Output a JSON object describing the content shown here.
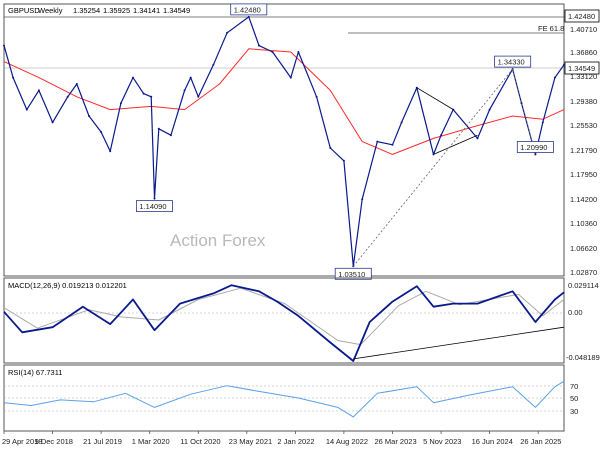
{
  "header": {
    "symbol": "GBPUSD",
    "timeframe": "Weekly",
    "ohlc": [
      "1.35254",
      "1.35925",
      "1.34141",
      "1.34549"
    ]
  },
  "watermark": "Action Forex",
  "price_axis": {
    "ticks": [
      "1.40710",
      "1.36860",
      "1.33120",
      "1.29380",
      "1.25530",
      "1.21790",
      "1.17950",
      "1.14200",
      "1.10360",
      "1.06620",
      "1.02870"
    ],
    "current_price": "1.34549",
    "level_high": "1.42480",
    "fib_label": "FE 61.8"
  },
  "annotations": [
    {
      "text": "1.42480",
      "date": "2021-06-01",
      "price": 1.4248
    },
    {
      "text": "1.14090",
      "date": "2020-03-23",
      "price": 1.1409
    },
    {
      "text": "1.03510",
      "date": "2022-09-26",
      "price": 1.0351
    },
    {
      "text": "1.34330",
      "date": "2024-09-30",
      "price": 1.3433
    },
    {
      "text": "1.20990",
      "date": "2025-01-13",
      "price": 1.2099
    }
  ],
  "macd": {
    "label": "MACD(12,26,9) 0.019213 0.012201",
    "ticks": [
      "0.029114",
      "0.00",
      "-0.048189"
    ]
  },
  "rsi": {
    "label": "RSI(14) 67.7311",
    "ticks": [
      "70",
      "50",
      "30"
    ]
  },
  "time_axis": [
    "29 Apr 2018",
    "9 Dec 2018",
    "21 Jul 2019",
    "1 Mar 2020",
    "11 Oct 2020",
    "23 May 2021",
    "2 Jan 2022",
    "14 Aug 2022",
    "26 Mar 2023",
    "5 Nov 2023",
    "16 Jun 2024",
    "26 Jan 2025"
  ],
  "chart_data": {
    "type": "line",
    "x_format": "date",
    "colors": {
      "price": "#0a1a8c",
      "ma": "#ff2a2a",
      "macd": "#0a1a8c",
      "signal": "#aaaaaa",
      "rsi": "#5aa0e8",
      "trendline": "#000000",
      "dotted": "#666666"
    },
    "price_ylim": [
      1.02,
      1.445
    ],
    "price": [
      [
        "2018-04-29",
        1.38
      ],
      [
        "2018-06-10",
        1.33
      ],
      [
        "2018-08-12",
        1.28
      ],
      [
        "2018-10-07",
        1.31
      ],
      [
        "2018-12-09",
        1.26
      ],
      [
        "2019-02-17",
        1.3
      ],
      [
        "2019-03-31",
        1.32
      ],
      [
        "2019-05-26",
        1.27
      ],
      [
        "2019-07-21",
        1.245
      ],
      [
        "2019-09-01",
        1.215
      ],
      [
        "2019-10-20",
        1.29
      ],
      [
        "2019-12-15",
        1.33
      ],
      [
        "2020-02-02",
        1.305
      ],
      [
        "2020-03-08",
        1.3
      ],
      [
        "2020-03-23",
        1.1409
      ],
      [
        "2020-04-12",
        1.25
      ],
      [
        "2020-06-07",
        1.24
      ],
      [
        "2020-08-09",
        1.31
      ],
      [
        "2020-09-06",
        1.33
      ],
      [
        "2020-10-11",
        1.3
      ],
      [
        "2020-12-20",
        1.35
      ],
      [
        "2021-02-21",
        1.4
      ],
      [
        "2021-06-01",
        1.4248
      ],
      [
        "2021-07-18",
        1.38
      ],
      [
        "2021-09-19",
        1.37
      ],
      [
        "2021-12-12",
        1.33
      ],
      [
        "2022-01-16",
        1.37
      ],
      [
        "2022-04-10",
        1.3
      ],
      [
        "2022-06-12",
        1.22
      ],
      [
        "2022-08-14",
        1.2
      ],
      [
        "2022-09-26",
        1.0351
      ],
      [
        "2022-11-06",
        1.14
      ],
      [
        "2023-01-15",
        1.23
      ],
      [
        "2023-03-26",
        1.225
      ],
      [
        "2023-05-07",
        1.26
      ],
      [
        "2023-07-16",
        1.3142
      ],
      [
        "2023-10-01",
        1.21
      ],
      [
        "2023-11-05",
        1.24
      ],
      [
        "2023-12-31",
        1.28
      ],
      [
        "2024-04-21",
        1.235
      ],
      [
        "2024-06-16",
        1.28
      ],
      [
        "2024-09-30",
        1.3433
      ],
      [
        "2024-11-10",
        1.29
      ],
      [
        "2025-01-13",
        1.2099
      ],
      [
        "2025-02-16",
        1.26
      ],
      [
        "2025-04-13",
        1.33
      ],
      [
        "2025-05-25",
        1.35
      ]
    ],
    "moving_average": [
      [
        "2018-04-29",
        1.355
      ],
      [
        "2018-10-07",
        1.33
      ],
      [
        "2019-03-31",
        1.3
      ],
      [
        "2019-09-01",
        1.28
      ],
      [
        "2020-03-08",
        1.285
      ],
      [
        "2020-08-09",
        1.28
      ],
      [
        "2021-01-17",
        1.32
      ],
      [
        "2021-06-01",
        1.375
      ],
      [
        "2021-12-12",
        1.37
      ],
      [
        "2022-06-12",
        1.31
      ],
      [
        "2022-11-06",
        1.23
      ],
      [
        "2023-03-26",
        1.21
      ],
      [
        "2023-10-01",
        1.235
      ],
      [
        "2024-04-21",
        1.255
      ],
      [
        "2024-09-30",
        1.27
      ],
      [
        "2025-02-16",
        1.265
      ],
      [
        "2025-05-25",
        1.28
      ]
    ],
    "macd_ylim": [
      -0.05,
      0.033
    ],
    "macd": [
      [
        "2018-04-29",
        0.0
      ],
      [
        "2018-07-22",
        -0.02
      ],
      [
        "2018-12-09",
        -0.015
      ],
      [
        "2019-04-28",
        0.005
      ],
      [
        "2019-09-01",
        -0.012
      ],
      [
        "2019-12-15",
        0.012
      ],
      [
        "2020-03-23",
        -0.018
      ],
      [
        "2020-07-19",
        0.008
      ],
      [
        "2020-12-20",
        0.018
      ],
      [
        "2021-03-14",
        0.026
      ],
      [
        "2021-07-18",
        0.02
      ],
      [
        "2021-10-10",
        0.01
      ],
      [
        "2022-01-16",
        -0.004
      ],
      [
        "2022-06-12",
        -0.03
      ],
      [
        "2022-09-26",
        -0.048
      ],
      [
        "2022-12-11",
        -0.01
      ],
      [
        "2023-03-26",
        0.01
      ],
      [
        "2023-07-16",
        0.025
      ],
      [
        "2023-10-01",
        0.005
      ],
      [
        "2023-12-31",
        0.008
      ],
      [
        "2024-04-21",
        0.008
      ],
      [
        "2024-09-30",
        0.02
      ],
      [
        "2025-01-13",
        -0.01
      ],
      [
        "2025-04-13",
        0.012
      ],
      [
        "2025-05-25",
        0.019
      ]
    ],
    "macd_signal": [
      [
        "2018-04-29",
        0.004
      ],
      [
        "2018-09-30",
        -0.016
      ],
      [
        "2019-05-26",
        0.002
      ],
      [
        "2019-10-20",
        -0.005
      ],
      [
        "2020-04-12",
        -0.008
      ],
      [
        "2020-10-11",
        0.012
      ],
      [
        "2021-04-25",
        0.023
      ],
      [
        "2021-11-14",
        0.008
      ],
      [
        "2022-07-17",
        -0.028
      ],
      [
        "2022-10-30",
        -0.032
      ],
      [
        "2023-04-23",
        0.006
      ],
      [
        "2023-08-27",
        0.02
      ],
      [
        "2024-01-28",
        0.007
      ],
      [
        "2024-10-27",
        0.017
      ],
      [
        "2025-02-16",
        -0.004
      ],
      [
        "2025-05-25",
        0.0122
      ]
    ],
    "rsi_ylim": [
      15,
      85
    ],
    "rsi": [
      [
        "2018-04-29",
        45
      ],
      [
        "2018-09-02",
        42
      ],
      [
        "2019-01-13",
        48
      ],
      [
        "2019-06-16",
        46
      ],
      [
        "2019-11-10",
        55
      ],
      [
        "2020-03-23",
        40
      ],
      [
        "2020-09-06",
        54
      ],
      [
        "2021-02-21",
        63
      ],
      [
        "2021-07-18",
        57
      ],
      [
        "2022-01-16",
        50
      ],
      [
        "2022-07-17",
        40
      ],
      [
        "2022-09-26",
        30
      ],
      [
        "2023-01-15",
        55
      ],
      [
        "2023-07-16",
        62
      ],
      [
        "2023-10-01",
        45
      ],
      [
        "2024-03-10",
        53
      ],
      [
        "2024-09-30",
        62
      ],
      [
        "2025-01-13",
        40
      ],
      [
        "2025-04-13",
        62
      ],
      [
        "2025-05-25",
        67.73
      ]
    ],
    "trendlines": [
      {
        "panel": "price",
        "style": "solid",
        "points": [
          [
            "2023-07-16",
            1.3142
          ],
          [
            "2024-01-01",
            1.28
          ]
        ]
      },
      {
        "panel": "price",
        "style": "solid",
        "points": [
          [
            "2023-10-01",
            1.21
          ],
          [
            "2024-04-21",
            1.24
          ]
        ]
      },
      {
        "panel": "price",
        "style": "dotted",
        "points": [
          [
            "2022-09-26",
            1.0351
          ],
          [
            "2024-09-30",
            1.3433
          ]
        ]
      },
      {
        "panel": "price",
        "style": "dotted",
        "points": [
          [
            "2024-09-30",
            1.3433
          ],
          [
            "2025-01-13",
            1.2099
          ]
        ]
      },
      {
        "panel": "macd",
        "style": "solid",
        "points": [
          [
            "2022-09-26",
            -0.046
          ],
          [
            "2025-05-25",
            -0.015
          ]
        ]
      }
    ]
  }
}
